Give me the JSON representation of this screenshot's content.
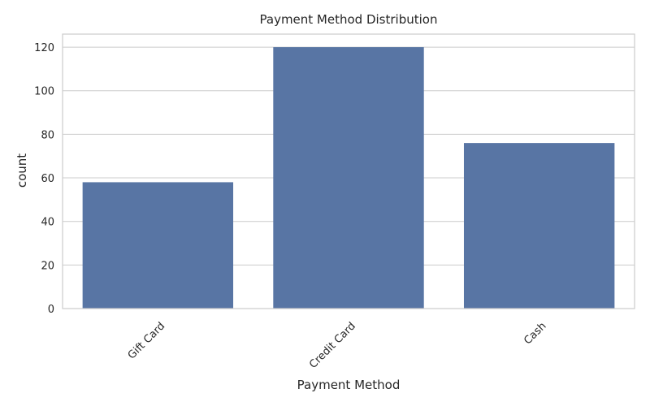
{
  "chart_data": {
    "type": "bar",
    "title": "Payment Method Distribution",
    "xlabel": "Payment Method",
    "ylabel": "count",
    "categories": [
      "Gift Card",
      "Credit Card",
      "Cash"
    ],
    "values": [
      58,
      120,
      76
    ],
    "ylim": [
      0,
      126
    ],
    "yticks": [
      0,
      20,
      40,
      60,
      80,
      100,
      120
    ],
    "grid": true,
    "colors": {
      "bar": "#5875a4",
      "grid": "#cccccc",
      "frame": "#cccccc",
      "text": "#262626",
      "background": "#ffffff"
    }
  }
}
